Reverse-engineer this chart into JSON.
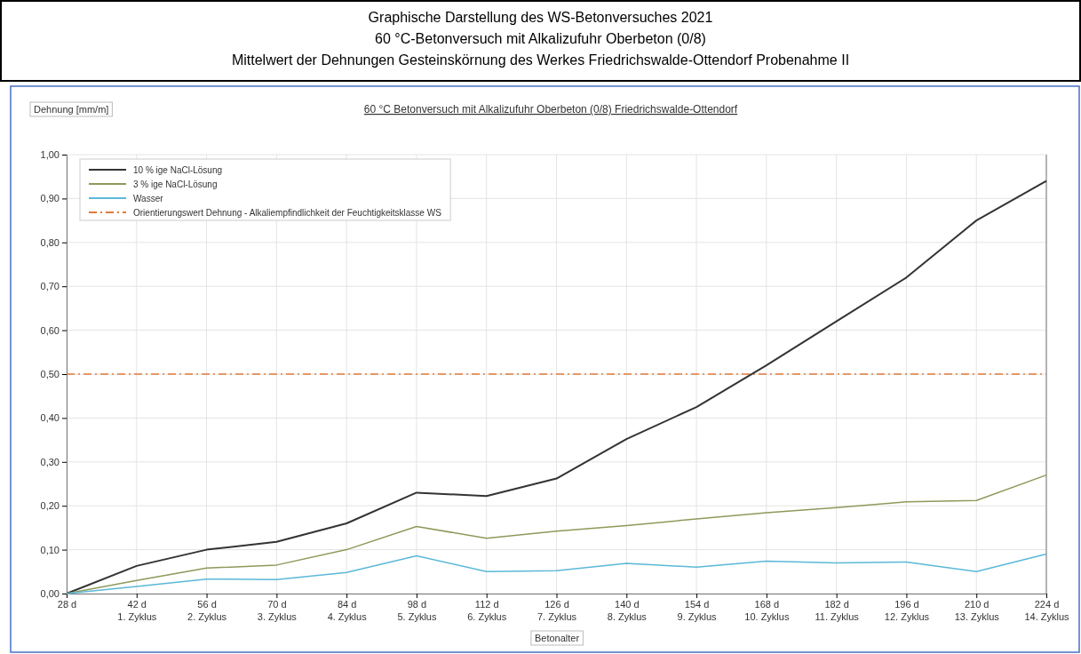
{
  "chart_data": {
    "type": "line",
    "title": "Graphische Darstellung des WS-Betonversuches 2021\n60 °C-Betonversuch mit Alkalizufuhr Oberbeton (0/8)\nMittelwert der Dehnungen Gesteinskörnung des Werkes Friedrichswalde-Ottendorf  Probenahme II",
    "subtitle": "60 °C Betonversuch  mit Alkalizufuhr  Oberbeton (0/8) Friedrichswalde-Ottendorf",
    "xlabel": "Betonalter",
    "ylabel": "Dehnung [mm/m]",
    "categories": [
      "28 d",
      "42 d\n1. Zyklus",
      "56 d\n2. Zyklus",
      "70 d\n3. Zyklus",
      "84 d\n4. Zyklus",
      "98 d\n5. Zyklus",
      "112 d\n6. Zyklus",
      "126 d\n7. Zyklus",
      "140 d\n8. Zyklus",
      "154 d\n9. Zyklus",
      "168 d\n10. Zyklus",
      "182 d\n11. Zyklus",
      "196 d\n12. Zyklus",
      "210 d\n13. Zyklus",
      "224 d\n14. Zyklus"
    ],
    "series": [
      {
        "name": "10 % ige NaCl-Lösung",
        "color": "#333333",
        "values": [
          0,
          0.063,
          0.1,
          0.118,
          0.16,
          0.23,
          0.222,
          0.262,
          0.352,
          0.425,
          0.52,
          0.62,
          0.72,
          0.85,
          0.94
        ]
      },
      {
        "name": "3 % ige NaCl-Lösung",
        "color": "#8c9a5a",
        "values": [
          0,
          0.03,
          0.058,
          0.065,
          0.1,
          0.153,
          0.126,
          0.142,
          0.155,
          0.17,
          0.184,
          0.196,
          0.209,
          0.212,
          0.27
        ]
      },
      {
        "name": "Wasser",
        "color": "#5bb8d8",
        "values": [
          0,
          0.016,
          0.033,
          0.032,
          0.048,
          0.086,
          0.05,
          0.052,
          0.069,
          0.06,
          0.074,
          0.07,
          0.072,
          0.05,
          0.09
        ]
      }
    ],
    "ref_lines": [
      {
        "axis": "y",
        "value": 0.5,
        "label": "Orientierungswert Dehnung - Alkaliempfindlichkeit der Feuchtigkeitsklasse WS",
        "color": "#e07b39",
        "line_style": "dashed"
      }
    ],
    "ylim": [
      0,
      1
    ],
    "yticks": [
      {
        "value": 0,
        "label": "0,00"
      },
      {
        "value": 0.1,
        "label": "0,10"
      },
      {
        "value": 0.2,
        "label": "0,20"
      },
      {
        "value": 0.3,
        "label": "0,30"
      },
      {
        "value": 0.4,
        "label": "0,40"
      },
      {
        "value": 0.5,
        "label": "0,50"
      },
      {
        "value": 0.6,
        "label": "0,60"
      },
      {
        "value": 0.7,
        "label": "0,70"
      },
      {
        "value": 0.8,
        "label": "0,80"
      },
      {
        "value": 0.9,
        "label": "0,90"
      },
      {
        "value": 1,
        "label": "1,00"
      }
    ],
    "grid": true,
    "legend": "top left",
    "line_style": "solid",
    "marker": "none"
  }
}
